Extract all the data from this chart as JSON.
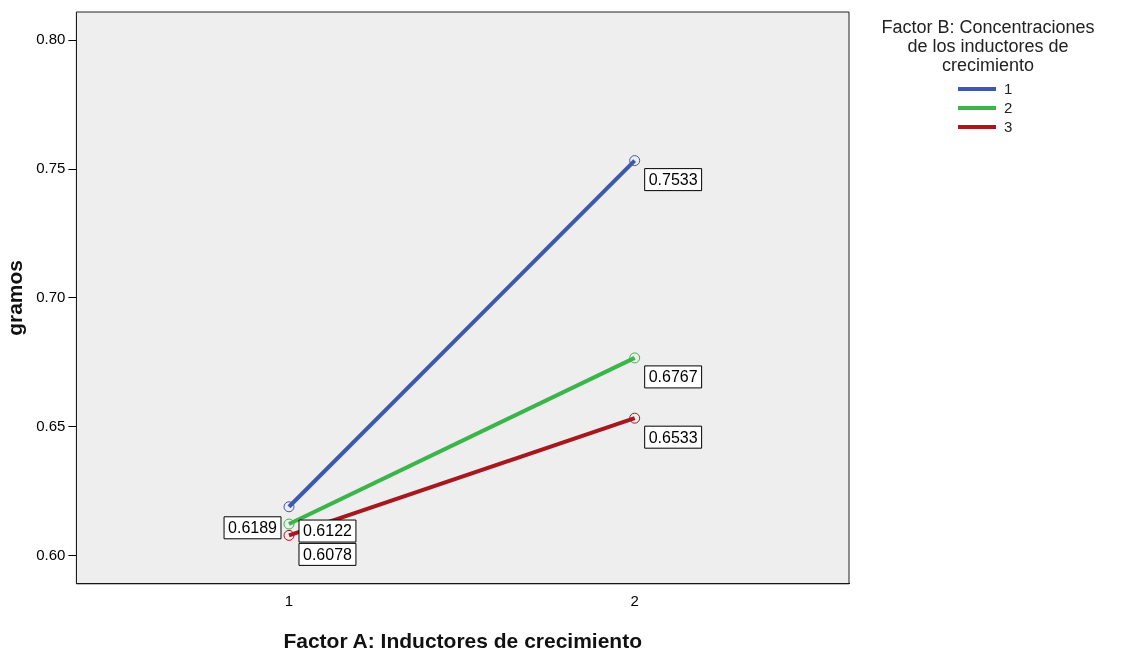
{
  "chart_data": {
    "type": "line",
    "xlabel": "Factor A: Inductores de crecimiento",
    "ylabel": "gramos",
    "legend_title": "Factor B: Concentraciones de los inductores de crecimiento",
    "categories": [
      "1",
      "2"
    ],
    "series": [
      {
        "name": "1",
        "color": "#3e58ac",
        "values": [
          0.6189,
          0.7533
        ]
      },
      {
        "name": "2",
        "color": "#3bb54a",
        "values": [
          0.6122,
          0.6767
        ]
      },
      {
        "name": "3",
        "color": "#a8171e",
        "values": [
          0.6078,
          0.6533
        ]
      }
    ],
    "ylim": [
      0.589,
      0.811
    ],
    "yticks": [
      {
        "value": 0.6,
        "label": "0.60"
      },
      {
        "value": 0.65,
        "label": "0.65"
      },
      {
        "value": 0.7,
        "label": "0.70"
      },
      {
        "value": 0.75,
        "label": "0.75"
      },
      {
        "value": 0.8,
        "label": "0.80"
      }
    ],
    "grid": false,
    "legend": "top right",
    "marker": "circle",
    "line_style": "solid",
    "data_labels": true
  }
}
